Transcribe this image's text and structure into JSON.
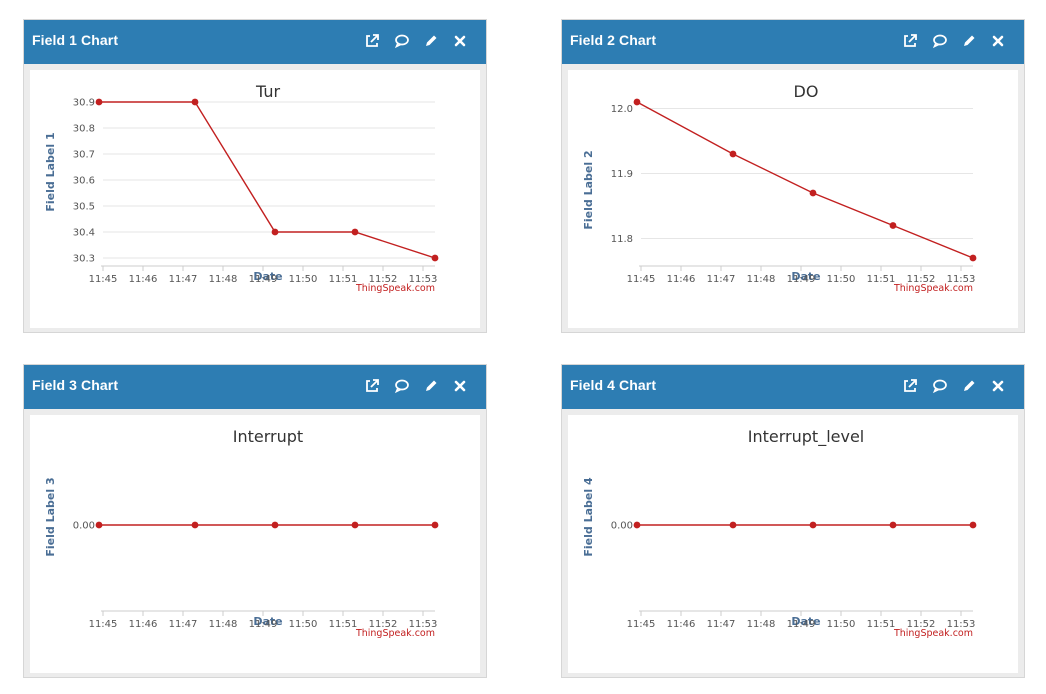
{
  "widgets": [
    {
      "header_title": "Field 1 Chart"
    },
    {
      "header_title": "Field 2 Chart"
    },
    {
      "header_title": "Field 3 Chart"
    },
    {
      "header_title": "Field 4 Chart"
    }
  ],
  "icons": [
    "external-link-icon",
    "comment-icon",
    "pencil-icon",
    "close-icon"
  ],
  "colors": {
    "header": "#2d7db3",
    "line": "#c22020",
    "axis_title": "#4a6e95"
  },
  "chart_data": [
    {
      "type": "line",
      "title": "Tur",
      "xlabel": "Date",
      "ylabel": "Field Label 1",
      "credit": "ThingSpeak.com",
      "x_ticks": [
        "11:45",
        "11:46",
        "11:47",
        "11:48",
        "11:49",
        "11:50",
        "11:51",
        "11:52",
        "11:53"
      ],
      "y_ticks": [
        "30.9",
        "30.8",
        "30.7",
        "30.6",
        "30.5",
        "30.4",
        "30.3"
      ],
      "xlim": [
        "11:45",
        "11:53.3"
      ],
      "ylim": [
        30.3,
        30.9
      ],
      "grid": true,
      "series": [
        {
          "x": [
            "11:44.9",
            "11:47.3",
            "11:49.3",
            "11:51.3",
            "11:53.3"
          ],
          "values": [
            30.9,
            30.9,
            30.4,
            30.4,
            30.3
          ]
        }
      ]
    },
    {
      "type": "line",
      "title": "DO",
      "xlabel": "Date",
      "ylabel": "Field Label 2",
      "credit": "ThingSpeak.com",
      "x_ticks": [
        "11:45",
        "11:46",
        "11:47",
        "11:48",
        "11:49",
        "11:50",
        "11:51",
        "11:52",
        "11:53"
      ],
      "y_ticks": [
        "12.0",
        "11.9",
        "11.8"
      ],
      "xlim": [
        "11:45",
        "11:53.3"
      ],
      "ylim": [
        11.77,
        12.01
      ],
      "grid": true,
      "series": [
        {
          "x": [
            "11:44.9",
            "11:47.3",
            "11:49.3",
            "11:51.3",
            "11:53.3"
          ],
          "values": [
            12.01,
            11.93,
            11.87,
            11.82,
            11.77
          ]
        }
      ]
    },
    {
      "type": "line",
      "title": "Interrupt",
      "xlabel": "Date",
      "ylabel": "Field Label 3",
      "credit": "ThingSpeak.com",
      "x_ticks": [
        "11:45",
        "11:46",
        "11:47",
        "11:48",
        "11:49",
        "11:50",
        "11:51",
        "11:52",
        "11:53"
      ],
      "y_ticks": [
        "0.00"
      ],
      "xlim": [
        "11:45",
        "11:53.3"
      ],
      "ylim": [
        -1,
        1
      ],
      "grid": true,
      "series": [
        {
          "x": [
            "11:44.9",
            "11:47.3",
            "11:49.3",
            "11:51.3",
            "11:53.3"
          ],
          "values": [
            0,
            0,
            0,
            0,
            0
          ]
        }
      ]
    },
    {
      "type": "line",
      "title": "Interrupt_level",
      "xlabel": "Date",
      "ylabel": "Field Label 4",
      "credit": "ThingSpeak.com",
      "x_ticks": [
        "11:45",
        "11:46",
        "11:47",
        "11:48",
        "11:49",
        "11:50",
        "11:51",
        "11:52",
        "11:53"
      ],
      "y_ticks": [
        "0.00"
      ],
      "xlim": [
        "11:45",
        "11:53.3"
      ],
      "ylim": [
        -1,
        1
      ],
      "grid": true,
      "series": [
        {
          "x": [
            "11:44.9",
            "11:47.3",
            "11:49.3",
            "11:51.3",
            "11:53.3"
          ],
          "values": [
            0,
            0,
            0,
            0,
            0
          ]
        }
      ]
    }
  ]
}
